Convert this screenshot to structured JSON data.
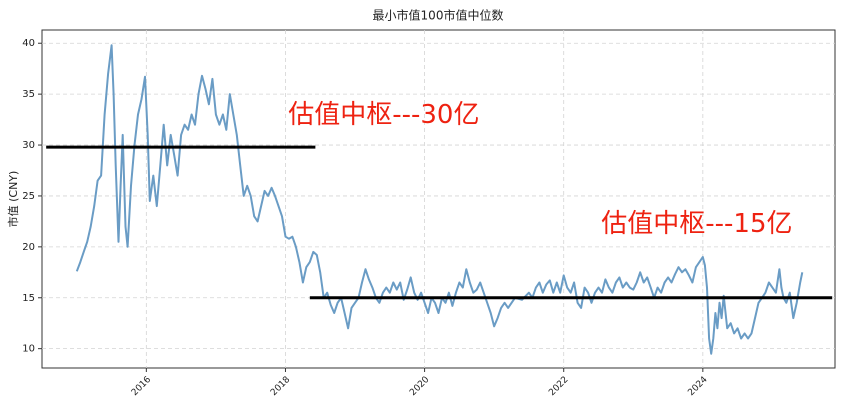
{
  "chart_data": {
    "type": "line",
    "title": "最小市值100市值中位数",
    "y_label": "市值 (CNY)",
    "xlim": [
      2014.5,
      2025.9
    ],
    "ylim": [
      8.1,
      41.3
    ],
    "xticks": [
      2016,
      2018,
      2020,
      2022,
      2024
    ],
    "yticks": [
      10,
      15,
      20,
      25,
      30,
      35,
      40
    ],
    "grid": true,
    "x": [
      2015.0,
      2015.05,
      2015.1,
      2015.15,
      2015.2,
      2015.25,
      2015.3,
      2015.35,
      2015.4,
      2015.45,
      2015.5,
      2015.53,
      2015.56,
      2015.6,
      2015.63,
      2015.66,
      2015.7,
      2015.73,
      2015.78,
      2015.83,
      2015.88,
      2015.93,
      2015.98,
      2016.02,
      2016.05,
      2016.1,
      2016.15,
      2016.2,
      2016.25,
      2016.3,
      2016.35,
      2016.4,
      2016.45,
      2016.5,
      2016.55,
      2016.6,
      2016.65,
      2016.7,
      2016.75,
      2016.8,
      2016.85,
      2016.9,
      2016.95,
      2017.0,
      2017.05,
      2017.1,
      2017.15,
      2017.2,
      2017.25,
      2017.3,
      2017.35,
      2017.4,
      2017.45,
      2017.5,
      2017.55,
      2017.6,
      2017.65,
      2017.7,
      2017.75,
      2017.8,
      2017.85,
      2017.9,
      2017.95,
      2018.0,
      2018.05,
      2018.1,
      2018.15,
      2018.2,
      2018.25,
      2018.3,
      2018.35,
      2018.4,
      2018.45,
      2018.5,
      2018.55,
      2018.6,
      2018.65,
      2018.7,
      2018.75,
      2018.8,
      2018.85,
      2018.9,
      2018.95,
      2019.0,
      2019.05,
      2019.1,
      2019.15,
      2019.2,
      2019.25,
      2019.3,
      2019.35,
      2019.4,
      2019.45,
      2019.5,
      2019.55,
      2019.6,
      2019.65,
      2019.7,
      2019.75,
      2019.8,
      2019.85,
      2019.9,
      2019.95,
      2020.0,
      2020.05,
      2020.1,
      2020.15,
      2020.2,
      2020.25,
      2020.3,
      2020.35,
      2020.4,
      2020.45,
      2020.5,
      2020.55,
      2020.6,
      2020.65,
      2020.7,
      2020.75,
      2020.8,
      2020.85,
      2020.9,
      2020.95,
      2021.0,
      2021.05,
      2021.1,
      2021.15,
      2021.2,
      2021.3,
      2021.4,
      2021.5,
      2021.55,
      2021.6,
      2021.65,
      2021.7,
      2021.75,
      2021.8,
      2021.85,
      2021.9,
      2021.95,
      2022.0,
      2022.05,
      2022.1,
      2022.15,
      2022.2,
      2022.25,
      2022.3,
      2022.35,
      2022.4,
      2022.45,
      2022.5,
      2022.55,
      2022.6,
      2022.65,
      2022.7,
      2022.75,
      2022.8,
      2022.85,
      2022.9,
      2022.95,
      2023.0,
      2023.05,
      2023.1,
      2023.15,
      2023.2,
      2023.25,
      2023.3,
      2023.35,
      2023.4,
      2023.45,
      2023.5,
      2023.55,
      2023.6,
      2023.65,
      2023.7,
      2023.75,
      2023.8,
      2023.85,
      2023.9,
      2023.95,
      2024.0,
      2024.03,
      2024.06,
      2024.09,
      2024.12,
      2024.15,
      2024.18,
      2024.21,
      2024.24,
      2024.27,
      2024.3,
      2024.35,
      2024.4,
      2024.45,
      2024.5,
      2024.55,
      2024.6,
      2024.65,
      2024.7,
      2024.75,
      2024.8,
      2024.85,
      2024.9,
      2024.95,
      2025.0,
      2025.05,
      2025.1,
      2025.13,
      2025.16,
      2025.2,
      2025.25,
      2025.3,
      2025.35,
      2025.4,
      2025.43
    ],
    "series": [
      {
        "color": "#6a9cc5",
        "values": [
          17.6,
          18.5,
          19.5,
          20.5,
          22,
          24,
          26.5,
          27,
          33,
          37,
          39.8,
          35,
          28,
          20.5,
          26,
          31,
          22,
          20,
          26,
          30,
          33,
          34.5,
          36.7,
          31,
          24.5,
          27,
          24,
          28,
          32,
          28,
          31,
          29,
          27,
          31,
          32,
          31.5,
          33,
          32,
          35,
          36.8,
          35.5,
          34,
          36.5,
          33,
          32,
          33,
          31.5,
          35,
          33,
          31,
          28,
          25,
          26,
          25,
          23,
          22.5,
          24,
          25.5,
          25,
          25.8,
          25,
          24,
          23,
          21,
          20.8,
          21,
          20,
          18.5,
          16.5,
          18,
          18.5,
          19.5,
          19.2,
          17.5,
          15,
          15.5,
          14.3,
          13.5,
          14.5,
          15,
          13.5,
          12,
          14,
          14.5,
          15,
          16.5,
          17.8,
          16.8,
          16,
          15,
          14.5,
          15.5,
          16,
          15.5,
          16.5,
          15.8,
          16.5,
          14.8,
          15.8,
          17,
          15.5,
          14.8,
          15.5,
          14.5,
          13.5,
          15,
          14.5,
          13.5,
          15,
          14.5,
          15.5,
          14.2,
          15.5,
          16.5,
          16,
          17.8,
          16.5,
          15.5,
          15.8,
          16.5,
          15.5,
          14.5,
          13.5,
          12.2,
          13,
          14,
          14.5,
          14,
          15,
          14.8,
          15.5,
          15,
          16,
          16.5,
          15.5,
          16.3,
          16.7,
          15.5,
          16.5,
          15.5,
          17.2,
          16,
          15.5,
          16.5,
          14.5,
          14,
          16,
          15.5,
          14.5,
          15.5,
          16,
          15.5,
          16.8,
          16,
          15.5,
          16.5,
          17,
          16,
          16.5,
          16,
          15.8,
          16.5,
          17.5,
          16.5,
          17,
          16,
          15,
          16,
          15.5,
          16.5,
          17,
          16.5,
          17.3,
          18,
          17.5,
          17.8,
          17.2,
          16.5,
          18,
          18.5,
          19,
          18.2,
          16,
          11,
          9.5,
          11,
          13.5,
          12,
          14.5,
          13,
          15.2,
          12,
          12.5,
          11.5,
          12,
          11,
          11.5,
          11,
          11.5,
          13,
          14.5,
          15,
          15.5,
          16.5,
          16,
          15.5,
          17.8,
          16,
          15,
          14.5,
          15.5,
          13,
          14.5,
          16.5,
          17.5
        ]
      }
    ],
    "reference_lines": [
      {
        "value": 29.8,
        "x": [
          2014.56,
          2018.43
        ],
        "color": "#000000"
      },
      {
        "value": 15.0,
        "x": [
          2018.35,
          2025.86
        ],
        "color": "#000000"
      }
    ],
    "annotations": [
      {
        "text": "估值中枢---30亿",
        "x": 2018.04,
        "y": 32.9,
        "color": "#ee2211"
      },
      {
        "text": "估值中枢---15亿",
        "x": 2022.54,
        "y": 22.2,
        "color": "#ee2211"
      }
    ]
  }
}
